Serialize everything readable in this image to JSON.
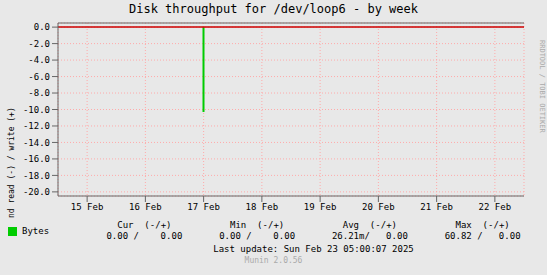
{
  "chart_data": {
    "type": "bar",
    "title": "Disk throughput for /dev/loop6 - by week",
    "y_label": "Pr second read (-) / write (+)",
    "categories": [
      "15 Feb",
      "16 Feb",
      "17 Feb",
      "18 Feb",
      "19 Feb",
      "20 Feb",
      "21 Feb",
      "22 Feb"
    ],
    "series": [
      {
        "name": "Bytes",
        "type": "bar",
        "color": "#00cc00",
        "values": [
          null,
          null,
          -10.3,
          null,
          null,
          null,
          null,
          null
        ]
      }
    ],
    "ylim": [
      -20.5,
      0.5
    ],
    "yticks": [
      {
        "value": 0,
        "label": "0.0"
      },
      {
        "value": -2,
        "label": "-2.0"
      },
      {
        "value": -4,
        "label": "-4.0"
      },
      {
        "value": -6,
        "label": "-6.0"
      },
      {
        "value": -8,
        "label": "-8.0"
      },
      {
        "value": -10,
        "label": "-10.0"
      },
      {
        "value": -12,
        "label": "-12.0"
      },
      {
        "value": -14,
        "label": "-14.0"
      },
      {
        "value": -16,
        "label": "-16.0"
      },
      {
        "value": -18,
        "label": "-18.0"
      },
      {
        "value": -20,
        "label": "-20.0"
      }
    ],
    "grid": true,
    "legend": "lower left",
    "annotations": [
      "RRDTOOL / TOBI OETIKER",
      "Cur  (-/+)",
      "Min  (-/+)",
      "Avg  (-/+)",
      "Max  (-/+)",
      "0.00 /    0.00",
      "0.00 /    0.00",
      "26.21m/   0.00",
      "60.82 /   0.00",
      "Last update: Sun Feb 23 05:00:07 2025",
      "Munin 2.0.56"
    ]
  }
}
